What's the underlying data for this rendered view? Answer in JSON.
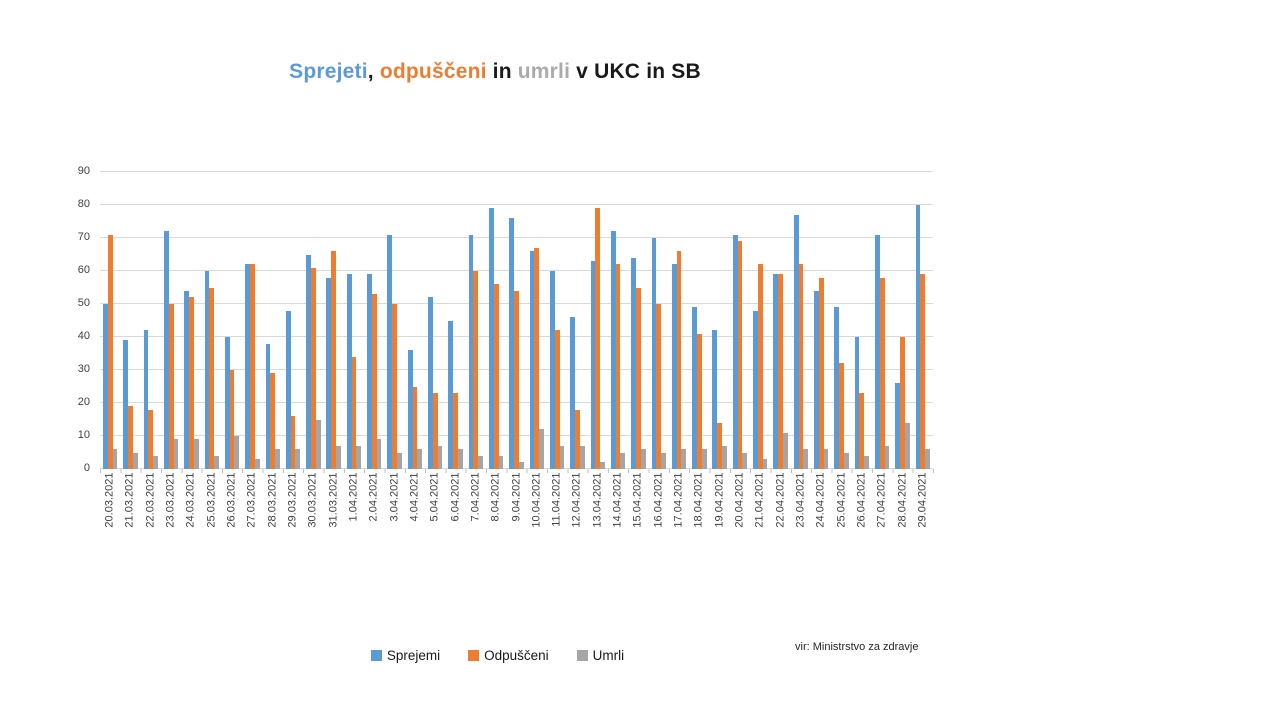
{
  "title": {
    "text": "Sprejeti, odpuščeni in umrli v UKC in SB",
    "parts": [
      {
        "text": "Sprejeti",
        "color": "#5B9BD5"
      },
      {
        "text": ", ",
        "color": "#1a1a1a"
      },
      {
        "text": "odpuščeni",
        "color": "#ED7D31"
      },
      {
        "text": " in ",
        "color": "#1a1a1a"
      },
      {
        "text": "umrli",
        "color": "#ABABAB"
      },
      {
        "text": " v UKC in SB",
        "color": "#1a1a1a"
      }
    ]
  },
  "source_note": "vir: Ministrstvo za zdravje",
  "chart_data": {
    "type": "bar",
    "title": "Sprejeti, odpuščeni in umrli v UKC in SB",
    "xlabel": "",
    "ylabel": "",
    "ylim": [
      0,
      90
    ],
    "ytick_step": 10,
    "grid": true,
    "legend_position": "bottom",
    "categories": [
      "20.03.2021",
      "21.03.2021",
      "22.03.2021",
      "23.03.2021",
      "24.03.2021",
      "25.03.2021",
      "26.03.2021",
      "27.03.2021",
      "28.03.2021",
      "29.03.2021",
      "30.03.2021",
      "31.03.2021",
      "1.04.2021",
      "2.04.2021",
      "3.04.2021",
      "4.04.2021",
      "5.04.2021",
      "6.04.2021",
      "7.04.2021",
      "8.04.2021",
      "9.04.2021",
      "10.04.2021",
      "11.04.2021",
      "12.04.2021",
      "13.04.2021",
      "14.04.2021",
      "15.04.2021",
      "16.04.2021",
      "17.04.2021",
      "18.04.2021",
      "19.04.2021",
      "20.04.2021",
      "21.04.2021",
      "22.04.2021",
      "23.04.2021",
      "24.04.2021",
      "25.04.2021",
      "26.04.2021",
      "27.04.2021",
      "28.04.2021",
      "29.04.2021"
    ],
    "series": [
      {
        "name": "Sprejemi",
        "color": "#5B9BD5",
        "values": [
          50,
          39,
          42,
          72,
          54,
          60,
          40,
          62,
          38,
          48,
          65,
          58,
          59,
          59,
          71,
          36,
          52,
          45,
          71,
          79,
          76,
          66,
          60,
          46,
          63,
          72,
          64,
          70,
          62,
          49,
          42,
          71,
          48,
          59,
          77,
          54,
          49,
          40,
          71,
          26,
          80
        ]
      },
      {
        "name": "Odpuščeni",
        "color": "#ED7D31",
        "values": [
          71,
          19,
          18,
          50,
          52,
          55,
          30,
          62,
          29,
          16,
          61,
          66,
          34,
          53,
          50,
          25,
          23,
          23,
          60,
          56,
          54,
          67,
          42,
          18,
          79,
          62,
          55,
          50,
          66,
          41,
          14,
          69,
          62,
          59,
          62,
          58,
          32,
          23,
          58,
          40,
          59
        ]
      },
      {
        "name": "Umrli",
        "color": "#A5A5A5",
        "values": [
          6,
          5,
          4,
          9,
          9,
          4,
          10,
          3,
          6,
          6,
          15,
          7,
          7,
          9,
          5,
          6,
          7,
          6,
          4,
          4,
          2,
          12,
          7,
          7,
          2,
          5,
          6,
          5,
          6,
          6,
          7,
          5,
          3,
          11,
          6,
          6,
          5,
          4,
          7,
          14,
          6
        ]
      }
    ]
  }
}
